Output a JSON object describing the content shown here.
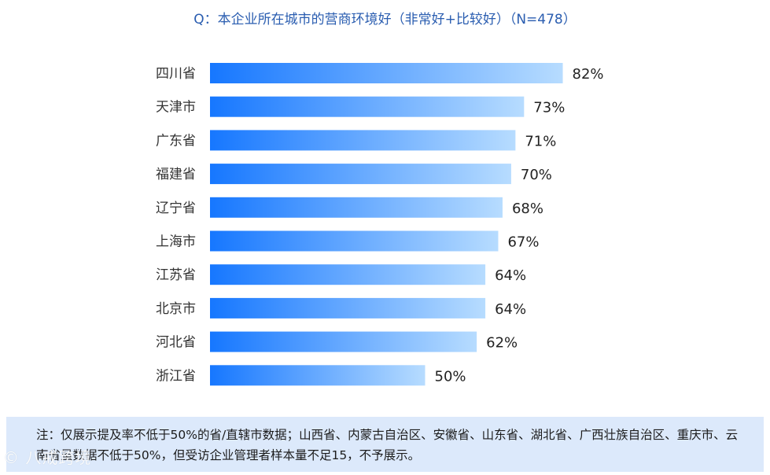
{
  "chart_data": {
    "type": "bar",
    "orientation": "horizontal",
    "title": "Q：本企业所在城市的营商环境好（非常好+比较好）（N=478）",
    "categories": [
      "四川省",
      "天津市",
      "广东省",
      "福建省",
      "辽宁省",
      "上海市",
      "江苏省",
      "北京市",
      "河北省",
      "浙江省"
    ],
    "values": [
      82,
      73,
      71,
      70,
      68,
      67,
      64,
      64,
      62,
      50
    ],
    "value_labels": [
      "82%",
      "73%",
      "71%",
      "70%",
      "68%",
      "67%",
      "64%",
      "64%",
      "62%",
      "50%"
    ],
    "unit": "%",
    "xlim": [
      0,
      100
    ],
    "grid": false,
    "colors": {
      "bar_start": "#1677ff",
      "bar_end": "#b7dcff",
      "title": "#2a5db0"
    }
  },
  "note": "注：仅展示提及率不低于50%的省/直辖市数据；山西省、内蒙古自治区、安徽省、山东省、湖北省、广西壮族自治区、重庆市、云南省虽数据不低于50%，但受访企业管理者样本量不足15，不予展示。",
  "watermark": "© 八戒跨境"
}
